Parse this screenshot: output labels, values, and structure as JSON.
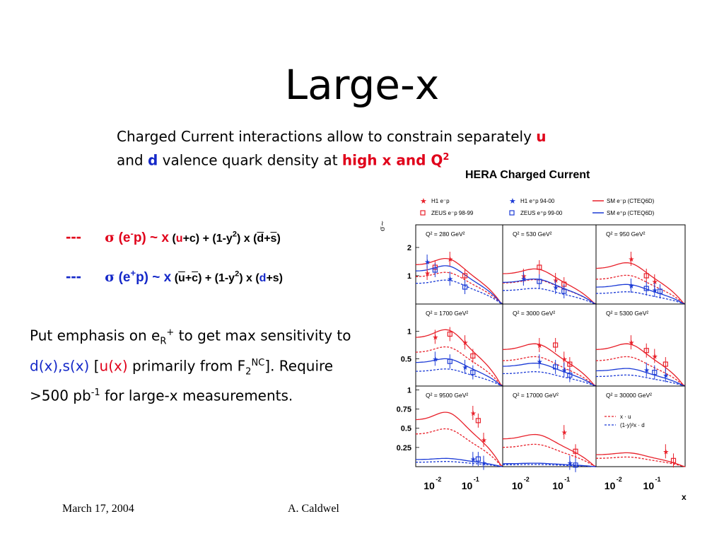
{
  "slide": {
    "title": "Large-x",
    "intro": {
      "line1": "Charged Current interactions allow to constrain separately ",
      "u": "u",
      "line2a": "and ",
      "d": "d",
      "line2b": " valence quark density at ",
      "highx": "high x and Q",
      "sup2": "2"
    },
    "formula1": {
      "dash": "---",
      "sigma": "σ",
      "open": " (e",
      "charge": "-",
      "p": "p)",
      "sim": " ~ x",
      "rest1": " (",
      "u": "u",
      "rest2": "+c) + (1-y",
      "sq": "2",
      "rest3": ") x (",
      "dbar": "d",
      "plus": "+",
      "sbar": "s",
      "close": ")"
    },
    "formula2": {
      "dash": "---",
      "sigma": "σ",
      "open": " (e",
      "charge": "+",
      "p": "p)",
      "sim": " ~ x",
      "rest1": " (",
      "ubar": "u",
      "plus": "+",
      "cbar": "c",
      "rest2": ") + (1-y",
      "sq": "2",
      "rest3": ") x (",
      "d": "d",
      "rest4": "+s)"
    },
    "emphasis": {
      "a": "Put emphasis on e",
      "sub_r": "R",
      "sup_plus": "+",
      "b": " to get max sensitivity to ",
      "dxsx": "d(x),s(x)",
      "c": " [",
      "ux": "u(x)",
      "d": " primarily from F",
      "sub2": "2",
      "sup_nc": "NC",
      "e": "]. Require >500 pb",
      "sup_m1": "-1",
      "f": " for large-x measurements."
    },
    "footer": {
      "date": "March 17, 2004",
      "author": "A. Caldwel"
    }
  },
  "chart_data": {
    "type": "scatter",
    "title": "HERA Charged Current",
    "xlabel": "x",
    "ylabel": "σ~",
    "xscale": "log",
    "legend": {
      "h1_em": "H1 e⁻p",
      "h1_ep": "H1 e⁺p 94-00",
      "sm_em": "SM e⁻p (CTEQ6D)",
      "zeus_em": "ZEUS e⁻p 98-99",
      "zeus_ep": "ZEUS e⁺p 99-00",
      "sm_ep": "SM e⁺p (CTEQ6D)",
      "xu": "x · u",
      "xd": "(1-y)²x · d"
    },
    "colors": {
      "em": "#e8202a",
      "ep": "#1c3bd6"
    },
    "x_ticks": [
      "10",
      "10"
    ],
    "x_tick_exps": [
      "-2",
      "-1"
    ],
    "rows": [
      {
        "y_ticks": [
          "2",
          "1"
        ],
        "ylim": [
          0,
          2.8
        ]
      },
      {
        "y_ticks": [
          "1",
          "0.5"
        ],
        "ylim": [
          0,
          1.5
        ]
      },
      {
        "y_ticks": [
          "1",
          "0.75",
          "0.5",
          "0.25"
        ],
        "ylim": [
          0,
          1.05
        ]
      }
    ],
    "panels": [
      {
        "q2": "Q² = 280 GeV²",
        "em": [
          [
            0.008,
            1.1
          ],
          [
            0.013,
            1.3
          ],
          [
            0.032,
            1.6
          ],
          [
            0.08,
            1.0
          ]
        ],
        "ep": [
          [
            0.008,
            1.5
          ],
          [
            0.013,
            1.2
          ],
          [
            0.032,
            0.9
          ],
          [
            0.08,
            0.6
          ]
        ]
      },
      {
        "q2": "Q² = 530 GeV²",
        "em": [
          [
            0.013,
            1.0
          ],
          [
            0.032,
            1.3
          ],
          [
            0.08,
            0.85
          ],
          [
            0.13,
            0.7
          ]
        ],
        "ep": [
          [
            0.013,
            0.9
          ],
          [
            0.032,
            0.8
          ],
          [
            0.08,
            0.6
          ],
          [
            0.13,
            0.45
          ]
        ]
      },
      {
        "q2": "Q² = 950 GeV²",
        "em": [
          [
            0.032,
            1.6
          ],
          [
            0.08,
            1.0
          ],
          [
            0.13,
            0.8
          ]
        ],
        "ep": [
          [
            0.032,
            0.65
          ],
          [
            0.08,
            0.55
          ],
          [
            0.13,
            0.5
          ],
          [
            0.18,
            0.45
          ]
        ]
      },
      {
        "q2": "Q² = 1700 GeV²",
        "em": [
          [
            0.013,
            0.9
          ],
          [
            0.032,
            0.95
          ],
          [
            0.08,
            0.8
          ],
          [
            0.13,
            0.55
          ]
        ],
        "ep": [
          [
            0.013,
            0.5
          ],
          [
            0.032,
            0.45
          ],
          [
            0.08,
            0.35
          ],
          [
            0.13,
            0.25
          ]
        ]
      },
      {
        "q2": "Q² = 3000 GeV²",
        "em": [
          [
            0.032,
            0.75
          ],
          [
            0.08,
            0.75
          ],
          [
            0.13,
            0.5
          ],
          [
            0.18,
            0.4
          ]
        ],
        "ep": [
          [
            0.032,
            0.45
          ],
          [
            0.08,
            0.35
          ],
          [
            0.13,
            0.3
          ],
          [
            0.18,
            0.2
          ]
        ]
      },
      {
        "q2": "Q² = 5300 GeV²",
        "em": [
          [
            0.032,
            0.8
          ],
          [
            0.08,
            0.65
          ],
          [
            0.13,
            0.55
          ],
          [
            0.25,
            0.4
          ]
        ],
        "ep": [
          [
            0.08,
            0.3
          ],
          [
            0.13,
            0.25
          ],
          [
            0.25,
            0.2
          ]
        ]
      },
      {
        "q2": "Q² = 9500 GeV²",
        "em": [
          [
            0.13,
            0.7
          ],
          [
            0.18,
            0.6
          ],
          [
            0.25,
            0.35
          ]
        ],
        "ep": [
          [
            0.13,
            0.1
          ],
          [
            0.18,
            0.1
          ],
          [
            0.25,
            0.05
          ]
        ]
      },
      {
        "q2": "Q² = 17000 GeV²",
        "em": [
          [
            0.13,
            0.45
          ],
          [
            0.25,
            0.2
          ]
        ],
        "ep": [
          [
            0.18,
            0.05
          ],
          [
            0.25,
            0.02
          ]
        ]
      },
      {
        "q2": "Q² = 30000 GeV²",
        "em": [
          [
            0.25,
            0.2
          ],
          [
            0.4,
            0.08
          ]
        ],
        "ep": []
      }
    ]
  }
}
